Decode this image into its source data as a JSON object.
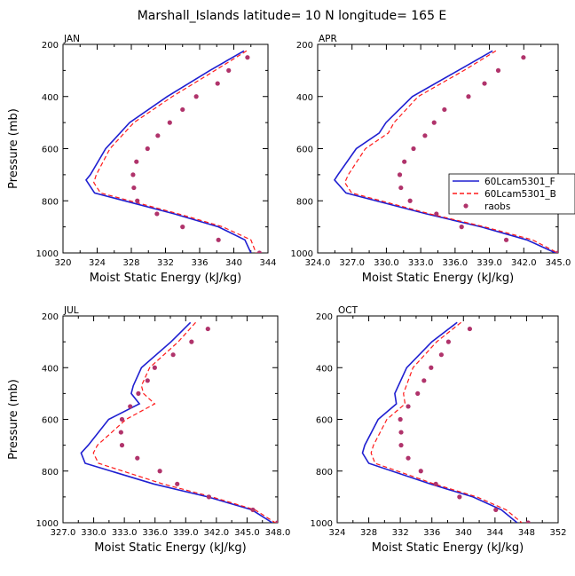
{
  "title": "Marshall_Islands   latitude=  10 N longitude=  165 E",
  "legend": [
    {
      "label": "60Lcam5301_F",
      "color": "#1f1fd1",
      "style": "solid"
    },
    {
      "label": "60Lcam5301_B",
      "color": "#ff1a1a",
      "style": "dashed"
    },
    {
      "label": "raobs",
      "color": "#b0336b",
      "style": "dot"
    }
  ],
  "chart_data": [
    {
      "type": "line",
      "panel": "JAN",
      "xlabel": "Moist Static Energy (kJ/kg)",
      "ylabel": "Pressure (mb)",
      "xlim": [
        320,
        344
      ],
      "ylim": [
        1000,
        200
      ],
      "xticks": [
        320,
        324,
        328,
        332,
        336,
        340,
        344
      ],
      "xticklabels": [
        "320",
        "324",
        "328",
        "332",
        "336",
        "340",
        "344"
      ],
      "yticks": [
        200,
        400,
        600,
        800,
        1000
      ],
      "yticklabels": [
        "200",
        "400",
        "600",
        "800",
        "1000"
      ],
      "series": [
        {
          "name": "60Lcam5301_F",
          "pressure": [
            225,
            300,
            400,
            500,
            600,
            700,
            720,
            770,
            850,
            900,
            950,
            1000
          ],
          "values": [
            341.2,
            337.2,
            332.2,
            327.8,
            325.0,
            323.2,
            322.7,
            323.7,
            333.0,
            338.2,
            341.3,
            342.0
          ]
        },
        {
          "name": "60Lcam5301_B",
          "pressure": [
            225,
            300,
            400,
            500,
            600,
            700,
            730,
            770,
            850,
            900,
            950,
            1000
          ],
          "values": [
            341.5,
            337.8,
            332.8,
            328.3,
            325.5,
            323.9,
            323.6,
            324.4,
            333.5,
            338.7,
            342.0,
            342.6
          ]
        },
        {
          "name": "raobs",
          "pressure": [
            250,
            300,
            350,
            400,
            450,
            500,
            550,
            600,
            650,
            700,
            750,
            800,
            850,
            900,
            950,
            1000
          ],
          "values": [
            341.6,
            339.4,
            338.1,
            335.6,
            334.0,
            332.5,
            331.1,
            329.9,
            328.6,
            328.2,
            328.3,
            328.7,
            331.0,
            334.0,
            338.2,
            343.0
          ]
        }
      ]
    },
    {
      "type": "line",
      "panel": "APR",
      "xlabel": "Moist Static Energy (kJ/kg)",
      "ylabel": "",
      "xlim": [
        324.03,
        345.03
      ],
      "ylim": [
        1000,
        200
      ],
      "xticks": [
        324.03,
        327.03,
        330.03,
        333.03,
        336.03,
        339.03,
        342.03,
        345.03
      ],
      "xticklabels": [
        "324.0",
        "327.0",
        "330.0",
        "333.0",
        "336.0",
        "339.0",
        "342.0",
        "345.0"
      ],
      "yticks": [
        200,
        400,
        600,
        800,
        1000
      ],
      "yticklabels": [
        "200",
        "400",
        "600",
        "800",
        "1000"
      ],
      "series": [
        {
          "name": "60Lcam5301_F",
          "pressure": [
            225,
            300,
            400,
            500,
            540,
            600,
            700,
            720,
            770,
            850,
            900,
            950,
            1000
          ],
          "values": [
            339.3,
            336.3,
            332.3,
            330.0,
            329.4,
            327.4,
            325.8,
            325.5,
            326.5,
            333.5,
            338.3,
            342.3,
            344.8
          ]
        },
        {
          "name": "60Lcam5301_B",
          "pressure": [
            225,
            300,
            400,
            500,
            540,
            600,
            700,
            730,
            770,
            850,
            900,
            950,
            1000
          ],
          "values": [
            339.6,
            336.8,
            332.8,
            330.7,
            330.2,
            328.2,
            326.7,
            326.4,
            327.0,
            333.8,
            338.6,
            342.8,
            345.0
          ]
        },
        {
          "name": "raobs",
          "pressure": [
            250,
            300,
            350,
            400,
            450,
            500,
            550,
            600,
            650,
            700,
            750,
            800,
            850,
            900,
            950,
            1000
          ],
          "values": [
            342.0,
            339.8,
            338.6,
            337.2,
            335.1,
            334.2,
            333.4,
            332.4,
            331.6,
            331.2,
            331.3,
            332.1,
            334.4,
            336.6,
            340.5,
            345.0
          ]
        }
      ]
    },
    {
      "type": "line",
      "panel": "JUL",
      "xlabel": "Moist Static Energy (kJ/kg)",
      "ylabel": "Pressure (mb)",
      "xlim": [
        327.03,
        348.03
      ],
      "ylim": [
        1000,
        200
      ],
      "xticks": [
        327.03,
        330.03,
        333.03,
        336.03,
        339.03,
        342.03,
        345.03,
        348.03
      ],
      "xticklabels": [
        "327.0",
        "330.0",
        "333.0",
        "336.0",
        "339.0",
        "342.0",
        "345.0",
        "348.0"
      ],
      "yticks": [
        200,
        400,
        600,
        800,
        1000
      ],
      "yticklabels": [
        "200",
        "400",
        "600",
        "800",
        "1000"
      ],
      "series": [
        {
          "name": "60Lcam5301_F",
          "pressure": [
            225,
            300,
            400,
            470,
            500,
            540,
            600,
            700,
            730,
            770,
            850,
            900,
            950,
            1000
          ],
          "values": [
            339.5,
            337.6,
            334.7,
            333.9,
            333.7,
            334.5,
            331.5,
            329.5,
            328.8,
            329.2,
            335.9,
            341.2,
            345.5,
            347.5
          ]
        },
        {
          "name": "60Lcam5301_B",
          "pressure": [
            225,
            300,
            400,
            470,
            500,
            540,
            600,
            700,
            730,
            770,
            850,
            900,
            950,
            1000
          ],
          "values": [
            340.0,
            338.3,
            335.5,
            334.7,
            334.9,
            336.0,
            333.2,
            330.4,
            330.0,
            330.5,
            336.8,
            341.6,
            345.8,
            347.8
          ]
        },
        {
          "name": "raobs",
          "pressure": [
            250,
            300,
            350,
            400,
            450,
            500,
            550,
            600,
            650,
            700,
            750,
            800,
            850,
            900,
            950,
            1000
          ],
          "values": [
            341.2,
            339.6,
            337.8,
            336.0,
            335.3,
            334.4,
            333.6,
            332.8,
            332.7,
            332.8,
            334.3,
            336.5,
            338.2,
            341.3,
            345.6,
            348.0
          ]
        }
      ]
    },
    {
      "type": "line",
      "panel": "OCT",
      "xlabel": "Moist Static Energy (kJ/kg)",
      "ylabel": "",
      "xlim": [
        324,
        352
      ],
      "ylim": [
        1000,
        200
      ],
      "xticks": [
        324,
        328,
        332,
        336,
        340,
        344,
        348,
        352
      ],
      "xticklabels": [
        "324",
        "328",
        "332",
        "336",
        "340",
        "344",
        "348",
        "352"
      ],
      "yticks": [
        200,
        400,
        600,
        800,
        1000
      ],
      "yticklabels": [
        "200",
        "400",
        "600",
        "800",
        "1000"
      ],
      "series": [
        {
          "name": "60Lcam5301_F",
          "pressure": [
            225,
            300,
            400,
            500,
            540,
            600,
            700,
            730,
            770,
            850,
            900,
            950,
            1000
          ],
          "values": [
            339.2,
            336.0,
            332.8,
            331.3,
            331.5,
            329.2,
            327.5,
            327.2,
            328.0,
            335.8,
            341.2,
            344.8,
            346.8
          ]
        },
        {
          "name": "60Lcam5301_B",
          "pressure": [
            225,
            300,
            400,
            500,
            540,
            600,
            700,
            730,
            770,
            850,
            900,
            950,
            1000
          ],
          "values": [
            339.7,
            336.6,
            333.6,
            332.4,
            332.6,
            330.3,
            328.6,
            328.3,
            328.8,
            336.3,
            341.7,
            345.4,
            347.4
          ]
        },
        {
          "name": "raobs",
          "pressure": [
            250,
            300,
            350,
            400,
            450,
            500,
            550,
            600,
            650,
            700,
            750,
            800,
            850,
            900,
            950,
            1000
          ],
          "values": [
            340.8,
            338.1,
            337.2,
            335.9,
            335.0,
            334.2,
            333.0,
            332.0,
            332.1,
            332.1,
            333.0,
            334.6,
            336.5,
            339.5,
            344.1,
            348.2
          ]
        }
      ]
    }
  ]
}
